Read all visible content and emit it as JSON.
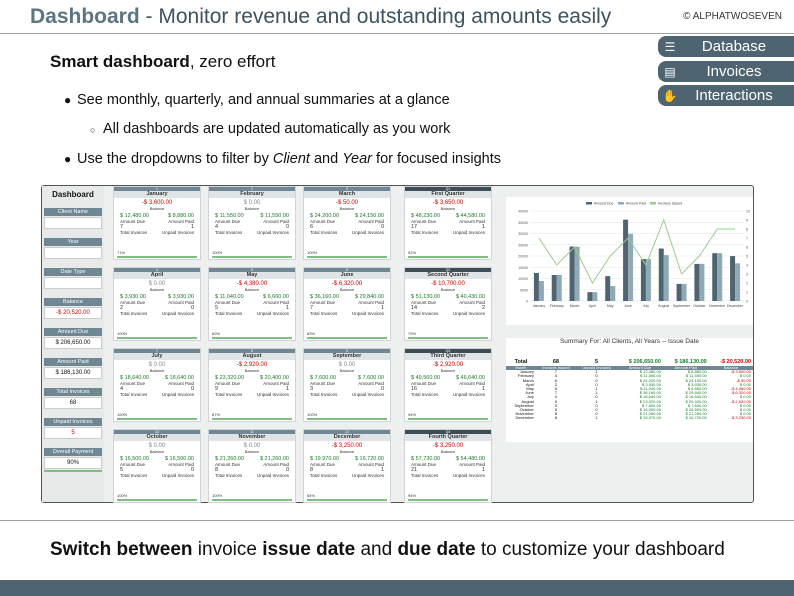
{
  "header": {
    "title_bold": "Dashboard",
    "title_rest": " - Monitor revenue and outstanding amounts easily",
    "copyright": "© ALPHATWOSEVEN"
  },
  "nav": [
    {
      "label": "Database",
      "icon": "database-icon",
      "glyph": "☰"
    },
    {
      "label": "Invoices",
      "icon": "invoice-icon",
      "glyph": "▤"
    },
    {
      "label": "Interactions",
      "icon": "handshake-icon",
      "glyph": "✋"
    }
  ],
  "intro": {
    "heading_bold": "Smart dashboard",
    "heading_rest": ", zero effort",
    "b1": "See monthly, quarterly, and annual summaries at a glance",
    "b2": "All dashboards are updated automatically as you work",
    "b3_pre": "Use the dropdowns to filter by ",
    "b3_client": "Client",
    "b3_mid": " and ",
    "b3_year": "Year",
    "b3_post": " for focused insights"
  },
  "panel": {
    "title": "Dashboard",
    "client_label": "Client Name",
    "year_label": "Year",
    "datetype_label": "Date Type",
    "balance_label": "Balance",
    "balance": "-$ 20,520.00",
    "amount_due_label": "Amount Due",
    "amount_due": "$ 206,650.00",
    "amount_paid_label": "Amount Paid",
    "amount_paid": "$ 186,130.00",
    "total_invoices_label": "Total Invoices",
    "total_invoices": "68",
    "unpaid_label": "Unpaid Invoices",
    "unpaid": "5",
    "overall_label": "Overall Payment",
    "overall": "90%"
  },
  "labels": {
    "balance": "Balance",
    "amount_due": "Amount Due",
    "amount_paid": "Amount Paid",
    "total_invoices": "Total Invoices",
    "unpaid_invoices": "Unpaid Invoices"
  },
  "cards": [
    {
      "num": "1",
      "name": "January",
      "bal": "-$ 3,600.00",
      "due": "$ 12,480.00",
      "paid": "$ 8,880.00",
      "inv": "7",
      "unp": "1",
      "pct": "71%",
      "q": false
    },
    {
      "num": "2",
      "name": "February",
      "bal": "$ 0.00",
      "due": "$ 11,550.00",
      "paid": "$ 11,550.00",
      "inv": "4",
      "unp": "0",
      "pct": "100%",
      "q": false
    },
    {
      "num": "3",
      "name": "March",
      "bal": "-$ 50.00",
      "due": "$ 24,200.00",
      "paid": "$ 24,150.00",
      "inv": "6",
      "unp": "0",
      "pct": "100%",
      "q": false
    },
    {
      "num": "Q1",
      "name": "First Quarter",
      "bal": "-$ 3,650.00",
      "due": "$ 48,230.00",
      "paid": "$ 44,580.00",
      "inv": "17",
      "unp": "1",
      "pct": "92%",
      "q": true
    },
    {
      "num": "4",
      "name": "April",
      "bal": "$ 0.00",
      "due": "$ 3,930.00",
      "paid": "$ 3,930.00",
      "inv": "2",
      "unp": "0",
      "pct": "100%",
      "q": false
    },
    {
      "num": "5",
      "name": "May",
      "bal": "-$ 4,380.00",
      "due": "$ 11,040.00",
      "paid": "$ 6,660.00",
      "inv": "5",
      "unp": "1",
      "pct": "60%",
      "q": false
    },
    {
      "num": "6",
      "name": "June",
      "bal": "-$ 6,320.00",
      "due": "$ 36,160.00",
      "paid": "$ 29,840.00",
      "inv": "7",
      "unp": "1",
      "pct": "83%",
      "q": false
    },
    {
      "num": "Q2",
      "name": "Second Quarter",
      "bal": "-$ 10,700.00",
      "due": "$ 51,130.00",
      "paid": "$ 40,430.00",
      "inv": "14",
      "unp": "2",
      "pct": "79%",
      "q": true
    },
    {
      "num": "7",
      "name": "July",
      "bal": "$ 0.00",
      "due": "$ 18,640.00",
      "paid": "$ 18,640.00",
      "inv": "4",
      "unp": "0",
      "pct": "100%",
      "q": false
    },
    {
      "num": "8",
      "name": "August",
      "bal": "-$ 2,920.00",
      "due": "$ 23,320.00",
      "paid": "$ 20,400.00",
      "inv": "9",
      "unp": "1",
      "pct": "87%",
      "q": false
    },
    {
      "num": "9",
      "name": "September",
      "bal": "$ 0.00",
      "due": "$ 7,600.00",
      "paid": "$ 7,600.00",
      "inv": "3",
      "unp": "0",
      "pct": "100%",
      "q": false
    },
    {
      "num": "Q3",
      "name": "Third Quarter",
      "bal": "-$ 2,920.00",
      "due": "$ 49,560.00",
      "paid": "$ 46,640.00",
      "inv": "16",
      "unp": "1",
      "pct": "94%",
      "q": true
    },
    {
      "num": "10",
      "name": "October",
      "bal": "$ 0.00",
      "due": "$ 16,500.00",
      "paid": "$ 16,500.00",
      "inv": "5",
      "unp": "0",
      "pct": "100%",
      "q": false
    },
    {
      "num": "11",
      "name": "November",
      "bal": "$ 0.00",
      "due": "$ 21,260.00",
      "paid": "$ 21,260.00",
      "inv": "8",
      "unp": "0",
      "pct": "100%",
      "q": false
    },
    {
      "num": "12",
      "name": "December",
      "bal": "-$ 3,250.00",
      "due": "$ 19,970.00",
      "paid": "$ 16,720.00",
      "inv": "8",
      "unp": "1",
      "pct": "84%",
      "q": false
    },
    {
      "num": "Q4",
      "name": "Fourth Quarter",
      "bal": "-$ 3,250.00",
      "due": "$ 57,730.00",
      "paid": "$ 54,480.00",
      "inv": "21",
      "unp": "1",
      "pct": "94%",
      "q": true
    }
  ],
  "chart_data": {
    "type": "bar",
    "categories": [
      "January",
      "February",
      "March",
      "April",
      "May",
      "June",
      "July",
      "August",
      "September",
      "October",
      "November",
      "December"
    ],
    "series": [
      {
        "name": "Amount Due",
        "values": [
          12480,
          11550,
          24200,
          3930,
          11040,
          36160,
          18640,
          23320,
          7600,
          16500,
          21260,
          19970
        ],
        "color": "#4e6470"
      },
      {
        "name": "Amount Paid",
        "values": [
          8880,
          11550,
          24150,
          3930,
          6660,
          29840,
          18640,
          20400,
          7600,
          16500,
          21260,
          16720
        ],
        "color": "#8faab5"
      },
      {
        "name": "Invoices Issued",
        "values": [
          7,
          4,
          6,
          2,
          5,
          7,
          4,
          9,
          3,
          5,
          8,
          8
        ],
        "color": "#9ccc8a"
      }
    ],
    "y_ticks": [
      "0",
      "5000",
      "10000",
      "15000",
      "20000",
      "25000",
      "30000",
      "35000",
      "40000"
    ],
    "y2_ticks": [
      "0",
      "1",
      "2",
      "3",
      "4",
      "5",
      "6",
      "7",
      "8",
      "9",
      "10"
    ],
    "ylim": [
      0,
      40000
    ],
    "y2lim": [
      0,
      10
    ],
    "legend": "top"
  },
  "summary": {
    "caption": "Summary For: All Clients, All Years -- Issue Date",
    "total_label": "Total",
    "total_inv": "68",
    "total_unp": "5",
    "total_due": "$ 206,650.00",
    "total_paid": "$ 186,130.00",
    "total_bal": "-$ 20,520.00",
    "cols": [
      "Month",
      "Invoices Issued",
      "Unpaid Invoices",
      "Amount Due",
      "Amount Paid",
      "Balance"
    ],
    "rows": [
      [
        "January",
        "7",
        "1",
        "$ 12,480.00",
        "$ 8,880.00",
        "-$ 3,600.00"
      ],
      [
        "February",
        "4",
        "0",
        "$ 11,550.00",
        "$ 11,550.00",
        "$ 0.00"
      ],
      [
        "March",
        "6",
        "0",
        "$ 24,200.00",
        "$ 24,150.00",
        "-$ 50.00"
      ],
      [
        "April",
        "2",
        "0",
        "$ 3,930.00",
        "$ 3,930.00",
        "$ 0.00"
      ],
      [
        "May",
        "5",
        "1",
        "$ 11,040.00",
        "$ 6,660.00",
        "-$ 4,380.00"
      ],
      [
        "June",
        "7",
        "1",
        "$ 36,160.00",
        "$ 29,840.00",
        "-$ 6,320.00"
      ],
      [
        "July",
        "4",
        "0",
        "$ 18,640.00",
        "$ 18,640.00",
        "$ 0.00"
      ],
      [
        "August",
        "9",
        "1",
        "$ 23,320.00",
        "$ 20,400.00",
        "-$ 2,920.00"
      ],
      [
        "September",
        "3",
        "0",
        "$ 7,600.00",
        "$ 7,600.00",
        "$ 0.00"
      ],
      [
        "October",
        "5",
        "0",
        "$ 16,500.00",
        "$ 16,500.00",
        "$ 0.00"
      ],
      [
        "November",
        "8",
        "0",
        "$ 21,260.00",
        "$ 21,260.00",
        "$ 0.00"
      ],
      [
        "December",
        "8",
        "1",
        "$ 19,970.00",
        "$ 16,720.00",
        "-$ 3,250.00"
      ]
    ]
  },
  "bottom": {
    "b1": "Switch between",
    "t1": " invoice ",
    "b2": "issue date",
    "t2": " and ",
    "b3": "due date",
    "t3": " to customize your dashboard"
  }
}
